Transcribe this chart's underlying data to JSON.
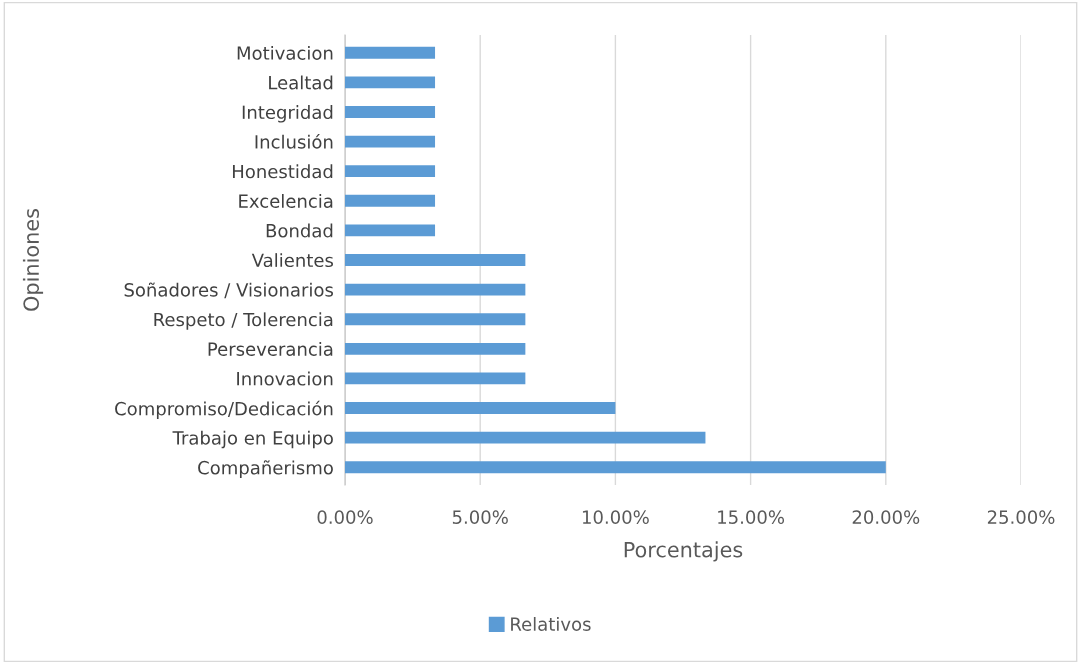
{
  "chart_data": {
    "type": "bar",
    "orientation": "horizontal",
    "xlabel": "Porcentajes",
    "ylabel": "Opiniones",
    "categories": [
      "Motivacion",
      "Lealtad",
      "Integridad",
      "Inclusión",
      "Honestidad",
      "Excelencia",
      "Bondad",
      "Valientes",
      "Soñadores / Visionarios",
      "Respeto / Tolerencia",
      "Perseverancia",
      "Innovacion",
      "Compromiso/Dedicación",
      "Trabajo en Equipo",
      "Compañerismo"
    ],
    "series": [
      {
        "name": "Relativos",
        "color": "#5b9bd5",
        "values": [
          3.33,
          3.33,
          3.33,
          3.33,
          3.33,
          3.33,
          3.33,
          6.67,
          6.67,
          6.67,
          6.67,
          6.67,
          10,
          13.33,
          20
        ]
      }
    ],
    "xlim": [
      0,
      25
    ],
    "xticks": [
      {
        "value": 0,
        "label": "0.00%"
      },
      {
        "value": 5,
        "label": "5.00%"
      },
      {
        "value": 10,
        "label": "10.00%"
      },
      {
        "value": 15,
        "label": "15.00%"
      },
      {
        "value": 20,
        "label": "20.00%"
      },
      {
        "value": 25,
        "label": "25.00%"
      }
    ],
    "grid": "x",
    "legend": "bottom"
  }
}
